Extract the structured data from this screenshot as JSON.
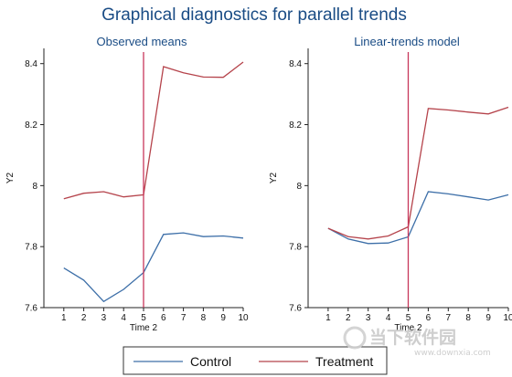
{
  "title": "Graphical diagnostics for parallel trends",
  "legend": {
    "control": "Control",
    "treatment": "Treatment"
  },
  "colors": {
    "control": "#3d6fa8",
    "treatment": "#b5434b",
    "cutoff": "#c8375a",
    "title": "#1a4c85"
  },
  "watermark": {
    "text": "当下软件园",
    "url": "www.downxia.com"
  },
  "chart_data": [
    {
      "type": "line",
      "title": "Observed means",
      "xlabel": "Time 2",
      "ylabel": "Y2",
      "x": [
        1,
        2,
        3,
        4,
        5,
        6,
        7,
        8,
        9,
        10
      ],
      "xlim": [
        0,
        10
      ],
      "ylim": [
        7.6,
        8.45
      ],
      "yticks": [
        7.6,
        7.8,
        8,
        8.2,
        8.4
      ],
      "ytick_labels": [
        "7.6",
        "7.8",
        "8",
        "8.2",
        "8.4"
      ],
      "vline": 5,
      "series": [
        {
          "name": "Control",
          "values": [
            7.73,
            7.69,
            7.62,
            7.66,
            7.715,
            7.84,
            7.845,
            7.833,
            7.835,
            7.828
          ]
        },
        {
          "name": "Treatment",
          "values": [
            7.957,
            7.975,
            7.98,
            7.963,
            7.97,
            8.39,
            8.37,
            8.356,
            8.355,
            8.405
          ]
        }
      ]
    },
    {
      "type": "line",
      "title": "Linear-trends model",
      "xlabel": "Time 2",
      "ylabel": "Y2",
      "x": [
        1,
        2,
        3,
        4,
        5,
        6,
        7,
        8,
        9,
        10
      ],
      "xlim": [
        0,
        10
      ],
      "ylim": [
        7.6,
        8.45
      ],
      "yticks": [
        7.6,
        7.8,
        8,
        8.2,
        8.4
      ],
      "ytick_labels": [
        "7.6",
        "7.8",
        "8",
        "8.2",
        "8.4"
      ],
      "vline": 5,
      "series": [
        {
          "name": "Control",
          "values": [
            7.86,
            7.825,
            7.81,
            7.812,
            7.832,
            7.98,
            7.973,
            7.963,
            7.953,
            7.97
          ]
        },
        {
          "name": "Treatment",
          "values": [
            7.86,
            7.833,
            7.825,
            7.835,
            7.865,
            8.253,
            8.248,
            8.241,
            8.235,
            8.257
          ]
        }
      ]
    }
  ]
}
